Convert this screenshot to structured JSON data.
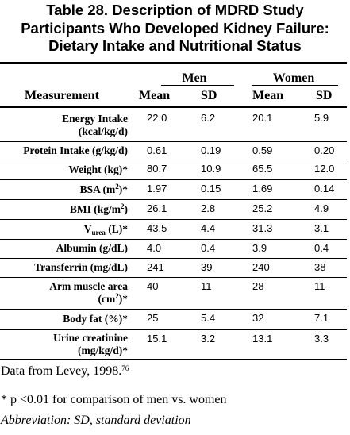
{
  "title": {
    "line1": "Table 28. Description of MDRD Study",
    "line2": "Participants Who Developed Kidney Failure:",
    "line3": "Dietary Intake and Nutritional Status"
  },
  "header": {
    "measurement": "Measurement",
    "men": "Men",
    "women": "Women",
    "mean": "Mean",
    "sd": "SD"
  },
  "rows": [
    {
      "label_line1": "Energy Intake",
      "label_line2": "(kcal/kg/d)",
      "men_mean": "22.0",
      "men_sd": "6.2",
      "women_mean": "20.1",
      "women_sd": "5.9"
    },
    {
      "label": "Protein Intake (g/kg/d)",
      "men_mean": "0.61",
      "men_sd": "0.19",
      "women_mean": "0.59",
      "women_sd": "0.20"
    },
    {
      "label": "Weight (kg)*",
      "men_mean": "80.7",
      "men_sd": "10.9",
      "women_mean": "65.5",
      "women_sd": "12.0"
    },
    {
      "label_pre": "BSA (m",
      "label_sup": "2",
      "label_post": ")*",
      "men_mean": "1.97",
      "men_sd": "0.15",
      "women_mean": "1.69",
      "women_sd": "0.14"
    },
    {
      "label_pre": "BMI (kg/m",
      "label_sup": "2",
      "label_post": ")",
      "men_mean": "26.1",
      "men_sd": "2.8",
      "women_mean": "25.2",
      "women_sd": "4.9"
    },
    {
      "label_pre": "V",
      "label_sub": "urea",
      "label_post": " (L)*",
      "men_mean": "43.5",
      "men_sd": "4.4",
      "women_mean": "31.3",
      "women_sd": "3.1"
    },
    {
      "label": "Albumin (g/dL)",
      "men_mean": "4.0",
      "men_sd": "0.4",
      "women_mean": "3.9",
      "women_sd": "0.4"
    },
    {
      "label": "Transferrin (mg/dL)",
      "men_mean": "241",
      "men_sd": "39",
      "women_mean": "240",
      "women_sd": "38"
    },
    {
      "label_line1": "Arm muscle area",
      "label_line2_pre": "(cm",
      "label_line2_sup": "2",
      "label_line2_post": ")*",
      "men_mean": "40",
      "men_sd": "11",
      "women_mean": "28",
      "women_sd": "11"
    },
    {
      "label": "Body fat (%)*",
      "men_mean": "25",
      "men_sd": "5.4",
      "women_mean": "32",
      "women_sd": "7.1"
    },
    {
      "label_line1": "Urine creatinine",
      "label_line2": "(mg/kg/d)*",
      "men_mean": "15.1",
      "men_sd": "3.2",
      "women_mean": "13.1",
      "women_sd": "3.3"
    }
  ],
  "footnotes": {
    "source": "Data from Levey, 1998.",
    "source_ref": "76",
    "significance": "* p <0.01 for comparison of men vs. women",
    "abbreviation": "Abbreviation: SD, standard deviation"
  }
}
